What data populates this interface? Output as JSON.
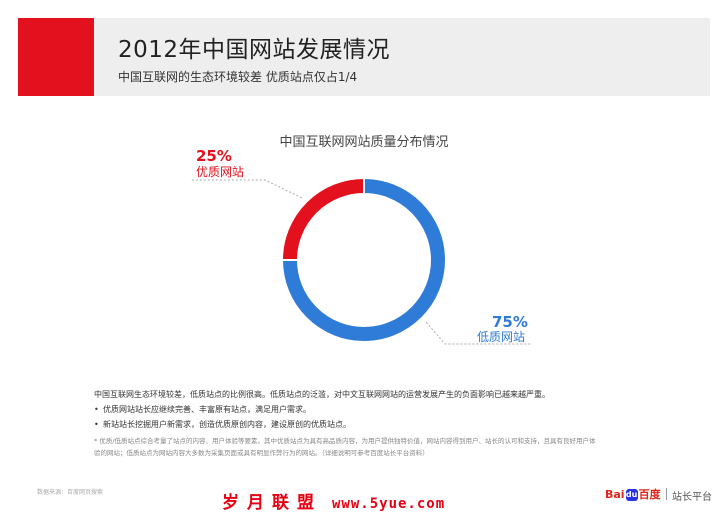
{
  "header": {
    "title": "2012年中国网站发展情况",
    "subtitle": "中国互联网的生态环境较差  优质站点仅占1/4",
    "accent_color": "#e3101d"
  },
  "chart_data": {
    "type": "pie",
    "subtype": "donut",
    "title": "中国互联网网站质量分布情况",
    "slices": [
      {
        "name": "低质网站",
        "value": 75,
        "label": "75%",
        "color": "#2f7bd8"
      },
      {
        "name": "优质网站",
        "value": 25,
        "label": "25%",
        "color": "#e3101d"
      }
    ]
  },
  "summary": {
    "lead": "中国互联网生态环境较差，低质站点的比例很高。低质站点的泛滥，对中文互联网网站的运营发展产生的负面影响已越来越严重。",
    "bullets": [
      "优质网站站长应继续完善、丰富原有站点，满足用户需求。",
      "新站站长挖掘用户新需求，创造优质原创内容，建设原创的优质站点。"
    ]
  },
  "footnote": {
    "line1": "* 优质/低质站点综合考量了站点的内容、用户体验等要素。其中优质站点为具有高品质内容，为用户提供独特价值，网站内容得到用户、站长的认可和支持，且具有良好用户体",
    "line2": "验的网站；低质站点为网站内容大多数为采集页面或具有明显作弊行为的网站。（详细说明可参考百度站长平台资料）"
  },
  "footer": {
    "source": "数据来源：百度网页搜索",
    "watermark_text": "岁月联盟",
    "watermark_url": "www.5yue.com",
    "brand_bai": "Bai",
    "brand_paw": "du",
    "brand_cn": "百度",
    "platform": "站长平台"
  }
}
